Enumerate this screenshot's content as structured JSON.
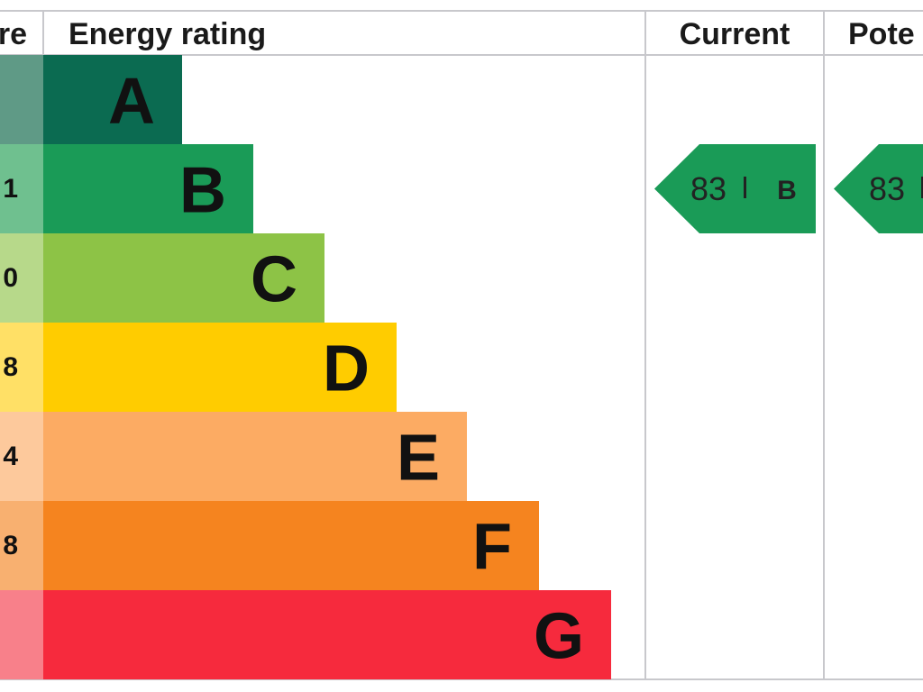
{
  "header": {
    "score": "re",
    "rating": "Energy rating",
    "current": "Current",
    "potential": "Pote"
  },
  "bands": [
    {
      "letter": "A",
      "color": "#0b6b51",
      "score_color": "#5f9a86"
    },
    {
      "letter": "B",
      "score": "1",
      "color": "#1a9b57",
      "score_color": "#6fc08f"
    },
    {
      "letter": "C",
      "score": "0",
      "color": "#8dc346",
      "score_color": "#b7d98a"
    },
    {
      "letter": "D",
      "score": "8",
      "color": "#ffcc00",
      "score_color": "#ffe066"
    },
    {
      "letter": "E",
      "score": "4",
      "color": "#fcab63",
      "score_color": "#fdc99c"
    },
    {
      "letter": "F",
      "score": "8",
      "color": "#f5841f",
      "score_color": "#f8b070"
    },
    {
      "letter": "G",
      "color": "#f62a3d",
      "score_color": "#f8808a"
    }
  ],
  "current": {
    "value": 83,
    "band": "B",
    "color": "#1a9b57"
  },
  "potential": {
    "value": 83,
    "color": "#1a9b57"
  }
}
